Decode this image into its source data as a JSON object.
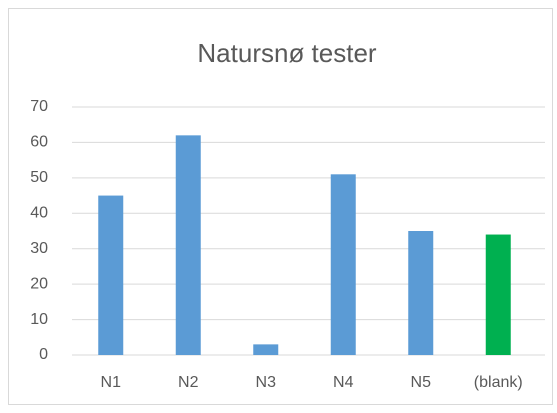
{
  "chart_data": {
    "type": "bar",
    "title": "Natursnø tester",
    "categories": [
      "N1",
      "N2",
      "N3",
      "N4",
      "N5",
      "(blank)"
    ],
    "values": [
      45,
      62,
      3,
      51,
      35,
      34
    ],
    "colors": [
      "#5b9bd5",
      "#5b9bd5",
      "#5b9bd5",
      "#5b9bd5",
      "#5b9bd5",
      "#00b050"
    ],
    "ylim": [
      0,
      70
    ],
    "yticks": [
      0,
      10,
      20,
      30,
      40,
      50,
      60,
      70
    ],
    "grid": true
  }
}
